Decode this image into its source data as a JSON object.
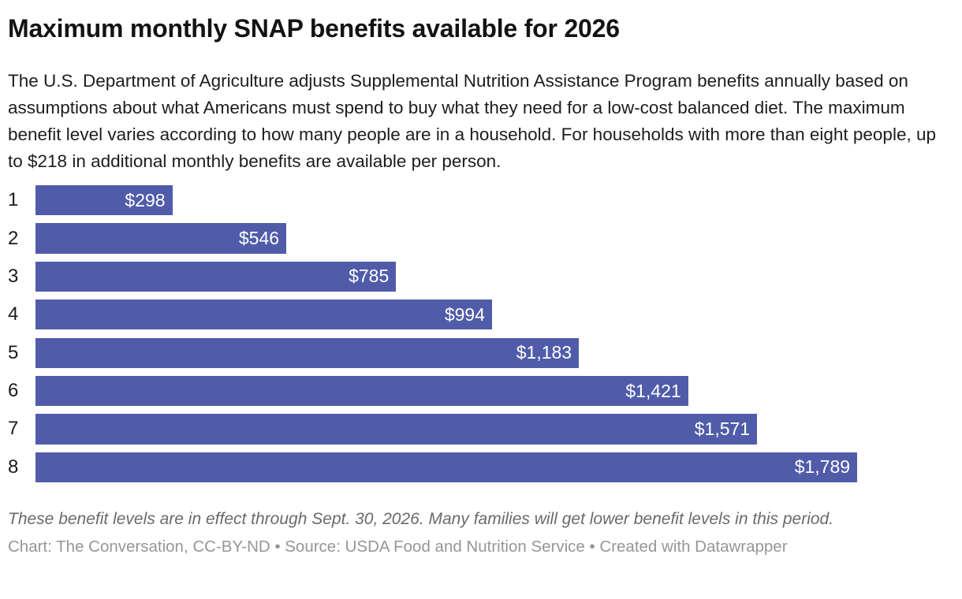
{
  "header": {
    "title": "Maximum monthly SNAP benefits available for 2026",
    "description": "The U.S. Department of Agriculture adjusts Supplemental Nutrition Assistance Program benefits annually based on assumptions about what Americans must spend to buy what they need for a low-cost balanced diet. The maximum benefit level varies according to how many people are in a household. For households with more than eight people, up to $218 in additional monthly benefits are available per person."
  },
  "chart_data": {
    "type": "bar",
    "orientation": "horizontal",
    "title": "Maximum monthly SNAP benefits available for 2026",
    "categories": [
      "1",
      "2",
      "3",
      "4",
      "5",
      "6",
      "7",
      "8"
    ],
    "values": [
      298,
      546,
      785,
      994,
      1183,
      1421,
      1571,
      1789
    ],
    "value_labels": [
      "$298",
      "$546",
      "$785",
      "$994",
      "$1,183",
      "$1,421",
      "$1,571",
      "$1,789"
    ],
    "xlabel": "",
    "ylabel": "",
    "xlim": [
      0,
      2000
    ],
    "grid": false,
    "legend": false,
    "value_label_position": "inside-end"
  },
  "footer": {
    "note": "These benefit levels are in effect through Sept. 30, 2026. Many families will get lower benefit levels in this period.",
    "attribution": "Chart: The Conversation, CC-BY-ND • Source: USDA Food and Nutrition Service • Created with Datawrapper"
  },
  "colors": {
    "bar": "#505ca9",
    "title_text": "#131313",
    "body_text": "#1d1d1d",
    "value_label_text": "#ffffff",
    "note_text": "#6a6a6a",
    "attribution_text": "#969696",
    "background": "#ffffff"
  }
}
